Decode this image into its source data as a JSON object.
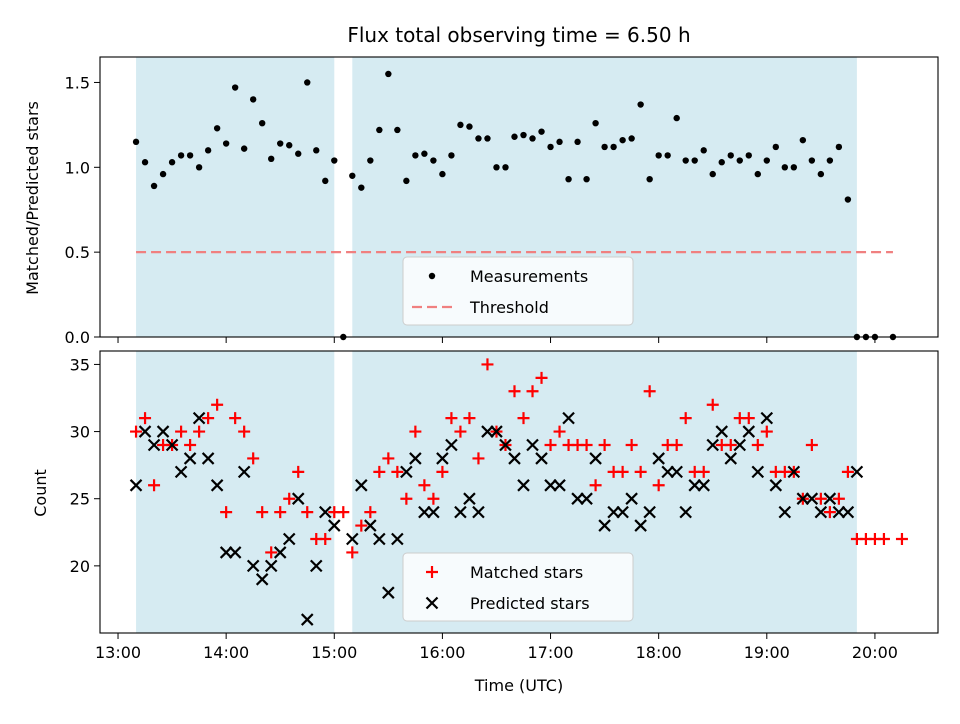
{
  "chart_data": [
    {
      "panel": "top",
      "type": "scatter",
      "title": "Flux total observing time = 6.50 h",
      "xlabel": "",
      "ylabel": "Matched/Predicted stars",
      "ylim": [
        0,
        1.65
      ],
      "yticks": [
        "0.0",
        "0.5",
        "1.0",
        "1.5"
      ],
      "shaded_intervals": [
        [
          "13:10",
          "15:00"
        ],
        [
          "15:10",
          "19:50"
        ]
      ],
      "legend_position": "lower-center",
      "series": [
        {
          "name": "Measurements",
          "marker": "dot",
          "color": "#000000",
          "points": [
            [
              "13:10",
              1.15
            ],
            [
              "13:15",
              1.03
            ],
            [
              "13:20",
              0.89
            ],
            [
              "13:25",
              0.96
            ],
            [
              "13:30",
              1.03
            ],
            [
              "13:35",
              1.07
            ],
            [
              "13:40",
              1.07
            ],
            [
              "13:45",
              1.0
            ],
            [
              "13:50",
              1.1
            ],
            [
              "13:55",
              1.23
            ],
            [
              "14:00",
              1.14
            ],
            [
              "14:05",
              1.47
            ],
            [
              "14:10",
              1.11
            ],
            [
              "14:15",
              1.4
            ],
            [
              "14:20",
              1.26
            ],
            [
              "14:25",
              1.05
            ],
            [
              "14:30",
              1.14
            ],
            [
              "14:35",
              1.13
            ],
            [
              "14:40",
              1.08
            ],
            [
              "14:45",
              1.5
            ],
            [
              "14:50",
              1.1
            ],
            [
              "14:55",
              0.92
            ],
            [
              "15:00",
              1.04
            ],
            [
              "15:05",
              0.0
            ],
            [
              "15:10",
              0.95
            ],
            [
              "15:15",
              0.88
            ],
            [
              "15:20",
              1.04
            ],
            [
              "15:25",
              1.22
            ],
            [
              "15:30",
              1.55
            ],
            [
              "15:35",
              1.22
            ],
            [
              "15:40",
              0.92
            ],
            [
              "15:45",
              1.07
            ],
            [
              "15:50",
              1.08
            ],
            [
              "15:55",
              1.04
            ],
            [
              "16:00",
              0.96
            ],
            [
              "16:05",
              1.07
            ],
            [
              "16:10",
              1.25
            ],
            [
              "16:15",
              1.24
            ],
            [
              "16:20",
              1.17
            ],
            [
              "16:25",
              1.17
            ],
            [
              "16:30",
              1.0
            ],
            [
              "16:35",
              1.0
            ],
            [
              "16:40",
              1.18
            ],
            [
              "16:45",
              1.19
            ],
            [
              "16:50",
              1.17
            ],
            [
              "16:55",
              1.21
            ],
            [
              "17:00",
              1.12
            ],
            [
              "17:05",
              1.15
            ],
            [
              "17:10",
              0.93
            ],
            [
              "17:15",
              1.15
            ],
            [
              "17:20",
              0.93
            ],
            [
              "17:25",
              1.26
            ],
            [
              "17:30",
              1.12
            ],
            [
              "17:35",
              1.12
            ],
            [
              "17:40",
              1.16
            ],
            [
              "17:45",
              1.17
            ],
            [
              "17:50",
              1.37
            ],
            [
              "17:55",
              0.93
            ],
            [
              "18:00",
              1.07
            ],
            [
              "18:05",
              1.07
            ],
            [
              "18:10",
              1.29
            ],
            [
              "18:15",
              1.04
            ],
            [
              "18:20",
              1.04
            ],
            [
              "18:25",
              1.1
            ],
            [
              "18:30",
              0.96
            ],
            [
              "18:35",
              1.03
            ],
            [
              "18:40",
              1.07
            ],
            [
              "18:45",
              1.04
            ],
            [
              "18:50",
              1.07
            ],
            [
              "18:55",
              0.96
            ],
            [
              "19:00",
              1.04
            ],
            [
              "19:05",
              1.12
            ],
            [
              "19:10",
              1.0
            ],
            [
              "19:15",
              1.0
            ],
            [
              "19:20",
              1.16
            ],
            [
              "19:25",
              1.04
            ],
            [
              "19:30",
              0.96
            ],
            [
              "19:35",
              1.04
            ],
            [
              "19:40",
              1.12
            ],
            [
              "19:45",
              0.81
            ],
            [
              "19:50",
              0.0
            ],
            [
              "19:55",
              0.0
            ],
            [
              "20:00",
              0.0
            ],
            [
              "20:10",
              0.0
            ]
          ]
        },
        {
          "name": "Threshold",
          "type": "line",
          "style": "dashed",
          "color": "#f08080",
          "points": [
            [
              "13:10",
              0.5
            ],
            [
              "20:10",
              0.5
            ]
          ]
        }
      ]
    },
    {
      "panel": "bottom",
      "type": "scatter",
      "xlabel": "Time (UTC)",
      "ylabel": "Count",
      "ylim": [
        15,
        36
      ],
      "yticks": [
        "20",
        "25",
        "30",
        "35"
      ],
      "xlim": [
        "12:50",
        "20:35"
      ],
      "xticks": [
        "13:00",
        "14:00",
        "15:00",
        "16:00",
        "17:00",
        "18:00",
        "19:00",
        "20:00"
      ],
      "shaded_intervals": [
        [
          "13:10",
          "15:00"
        ],
        [
          "15:10",
          "19:50"
        ]
      ],
      "legend_position": "lower-center",
      "series": [
        {
          "name": "Matched stars",
          "marker": "plus",
          "color": "#ff0000",
          "points": [
            [
              "13:10",
              30
            ],
            [
              "13:15",
              31
            ],
            [
              "13:20",
              26
            ],
            [
              "13:25",
              29
            ],
            [
              "13:30",
              29
            ],
            [
              "13:35",
              30
            ],
            [
              "13:40",
              29
            ],
            [
              "13:45",
              30
            ],
            [
              "13:50",
              31
            ],
            [
              "13:55",
              32
            ],
            [
              "14:00",
              24
            ],
            [
              "14:05",
              31
            ],
            [
              "14:10",
              30
            ],
            [
              "14:15",
              28
            ],
            [
              "14:20",
              24
            ],
            [
              "14:25",
              21
            ],
            [
              "14:30",
              24
            ],
            [
              "14:35",
              25
            ],
            [
              "14:40",
              27
            ],
            [
              "14:45",
              24
            ],
            [
              "14:50",
              22
            ],
            [
              "14:55",
              22
            ],
            [
              "15:00",
              24
            ],
            [
              "15:05",
              24
            ],
            [
              "15:10",
              21
            ],
            [
              "15:15",
              23
            ],
            [
              "15:20",
              24
            ],
            [
              "15:25",
              27
            ],
            [
              "15:30",
              28
            ],
            [
              "15:35",
              27
            ],
            [
              "15:40",
              25
            ],
            [
              "15:45",
              30
            ],
            [
              "15:50",
              26
            ],
            [
              "15:55",
              25
            ],
            [
              "16:00",
              27
            ],
            [
              "16:05",
              31
            ],
            [
              "16:10",
              30
            ],
            [
              "16:15",
              31
            ],
            [
              "16:20",
              28
            ],
            [
              "16:25",
              35
            ],
            [
              "16:30",
              30
            ],
            [
              "16:35",
              29
            ],
            [
              "16:40",
              33
            ],
            [
              "16:45",
              31
            ],
            [
              "16:50",
              33
            ],
            [
              "16:55",
              34
            ],
            [
              "17:00",
              29
            ],
            [
              "17:05",
              30
            ],
            [
              "17:10",
              29
            ],
            [
              "17:15",
              29
            ],
            [
              "17:20",
              29
            ],
            [
              "17:25",
              26
            ],
            [
              "17:30",
              29
            ],
            [
              "17:35",
              27
            ],
            [
              "17:40",
              27
            ],
            [
              "17:45",
              29
            ],
            [
              "17:50",
              27
            ],
            [
              "17:55",
              33
            ],
            [
              "18:00",
              26
            ],
            [
              "18:05",
              29
            ],
            [
              "18:10",
              29
            ],
            [
              "18:15",
              31
            ],
            [
              "18:20",
              27
            ],
            [
              "18:25",
              27
            ],
            [
              "18:30",
              32
            ],
            [
              "18:35",
              29
            ],
            [
              "18:40",
              29
            ],
            [
              "18:45",
              31
            ],
            [
              "18:50",
              31
            ],
            [
              "18:55",
              29
            ],
            [
              "19:00",
              30
            ],
            [
              "19:05",
              27
            ],
            [
              "19:10",
              27
            ],
            [
              "19:15",
              27
            ],
            [
              "19:20",
              25
            ],
            [
              "19:25",
              29
            ],
            [
              "19:30",
              25
            ],
            [
              "19:35",
              24
            ],
            [
              "19:40",
              25
            ],
            [
              "19:45",
              27
            ],
            [
              "19:50",
              22
            ],
            [
              "19:55",
              22
            ],
            [
              "20:00",
              22
            ],
            [
              "20:05",
              22
            ],
            [
              "20:15",
              22
            ]
          ]
        },
        {
          "name": "Predicted stars",
          "marker": "x",
          "color": "#000000",
          "points": [
            [
              "13:10",
              26
            ],
            [
              "13:15",
              30
            ],
            [
              "13:20",
              29
            ],
            [
              "13:25",
              30
            ],
            [
              "13:30",
              29
            ],
            [
              "13:35",
              27
            ],
            [
              "13:40",
              28
            ],
            [
              "13:45",
              31
            ],
            [
              "13:50",
              28
            ],
            [
              "13:55",
              26
            ],
            [
              "14:00",
              21
            ],
            [
              "14:05",
              21
            ],
            [
              "14:10",
              27
            ],
            [
              "14:15",
              20
            ],
            [
              "14:20",
              19
            ],
            [
              "14:25",
              20
            ],
            [
              "14:30",
              21
            ],
            [
              "14:35",
              22
            ],
            [
              "14:40",
              25
            ],
            [
              "14:45",
              16
            ],
            [
              "14:50",
              20
            ],
            [
              "14:55",
              24
            ],
            [
              "15:00",
              23
            ],
            [
              "15:10",
              22
            ],
            [
              "15:15",
              26
            ],
            [
              "15:20",
              23
            ],
            [
              "15:25",
              22
            ],
            [
              "15:30",
              18
            ],
            [
              "15:35",
              22
            ],
            [
              "15:40",
              27
            ],
            [
              "15:45",
              28
            ],
            [
              "15:50",
              24
            ],
            [
              "15:55",
              24
            ],
            [
              "16:00",
              28
            ],
            [
              "16:05",
              29
            ],
            [
              "16:10",
              24
            ],
            [
              "16:15",
              25
            ],
            [
              "16:20",
              24
            ],
            [
              "16:25",
              30
            ],
            [
              "16:30",
              30
            ],
            [
              "16:35",
              29
            ],
            [
              "16:40",
              28
            ],
            [
              "16:45",
              26
            ],
            [
              "16:50",
              29
            ],
            [
              "16:55",
              28
            ],
            [
              "17:00",
              26
            ],
            [
              "17:05",
              26
            ],
            [
              "17:10",
              31
            ],
            [
              "17:15",
              25
            ],
            [
              "17:20",
              25
            ],
            [
              "17:25",
              28
            ],
            [
              "17:30",
              23
            ],
            [
              "17:35",
              24
            ],
            [
              "17:40",
              24
            ],
            [
              "17:45",
              25
            ],
            [
              "17:50",
              23
            ],
            [
              "17:55",
              24
            ],
            [
              "18:00",
              28
            ],
            [
              "18:05",
              27
            ],
            [
              "18:10",
              27
            ],
            [
              "18:15",
              24
            ],
            [
              "18:20",
              26
            ],
            [
              "18:25",
              26
            ],
            [
              "18:30",
              29
            ],
            [
              "18:35",
              30
            ],
            [
              "18:40",
              28
            ],
            [
              "18:45",
              29
            ],
            [
              "18:50",
              30
            ],
            [
              "18:55",
              27
            ],
            [
              "19:00",
              31
            ],
            [
              "19:05",
              26
            ],
            [
              "19:10",
              24
            ],
            [
              "19:15",
              27
            ],
            [
              "19:20",
              25
            ],
            [
              "19:25",
              25
            ],
            [
              "19:30",
              24
            ],
            [
              "19:35",
              25
            ],
            [
              "19:40",
              24
            ],
            [
              "19:45",
              24
            ],
            [
              "19:50",
              27
            ]
          ]
        }
      ]
    }
  ]
}
